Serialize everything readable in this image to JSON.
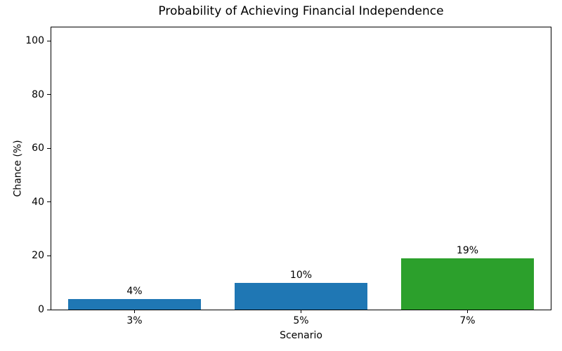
{
  "chart_data": {
    "type": "bar",
    "title": "Probability of Achieving Financial Independence",
    "xlabel": "Scenario",
    "ylabel": "Chance (%)",
    "categories": [
      "3%",
      "5%",
      "7%"
    ],
    "values": [
      4,
      10,
      19
    ],
    "bar_labels": [
      "4%",
      "10%",
      "19%"
    ],
    "bar_colors": [
      "#1f77b4",
      "#1f77b4",
      "#2ca02c"
    ],
    "yticks": [
      0,
      20,
      40,
      60,
      80,
      100
    ],
    "ylim": [
      0,
      105
    ],
    "grid": false,
    "legend_position": "none",
    "background_color": "#ffffff",
    "text_color": "#000000"
  }
}
